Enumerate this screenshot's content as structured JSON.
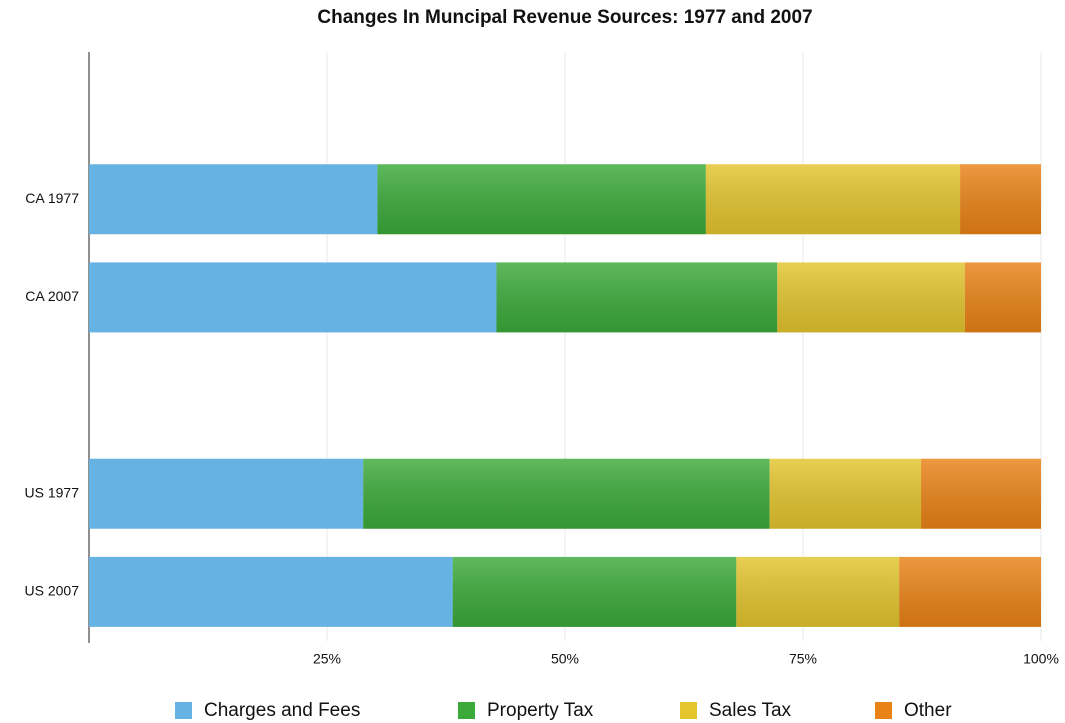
{
  "chart_data": {
    "type": "stacked-bar-horizontal",
    "title": "Changes In Muncipal Revenue Sources: 1977 and 2007",
    "categories": [
      null,
      "CA 1977",
      "CA 2007",
      null,
      "US 1977",
      "US 2007"
    ],
    "series": [
      {
        "name": "Charges and Fees",
        "color": "#66b3e3",
        "values": [
          null,
          30.3,
          42.8,
          null,
          28.8,
          38.2
        ]
      },
      {
        "name": "Property Tax",
        "color": "#3caa3a",
        "values": [
          null,
          34.5,
          29.5,
          null,
          42.7,
          29.8
        ]
      },
      {
        "name": "Sales Tax",
        "color": "#e3c52e",
        "values": [
          null,
          26.7,
          19.7,
          null,
          15.9,
          17.1
        ]
      },
      {
        "name": "Other",
        "color": "#ea8317",
        "values": [
          null,
          8.5,
          8.0,
          null,
          12.6,
          14.9
        ]
      }
    ],
    "xlim": [
      0,
      100
    ],
    "xticks": [
      {
        "value": 25,
        "label": "25%"
      },
      {
        "value": 50,
        "label": "50%"
      },
      {
        "value": 75,
        "label": "75%"
      },
      {
        "value": 100,
        "label": "100%"
      }
    ],
    "grid": true,
    "legend": "bottom"
  }
}
